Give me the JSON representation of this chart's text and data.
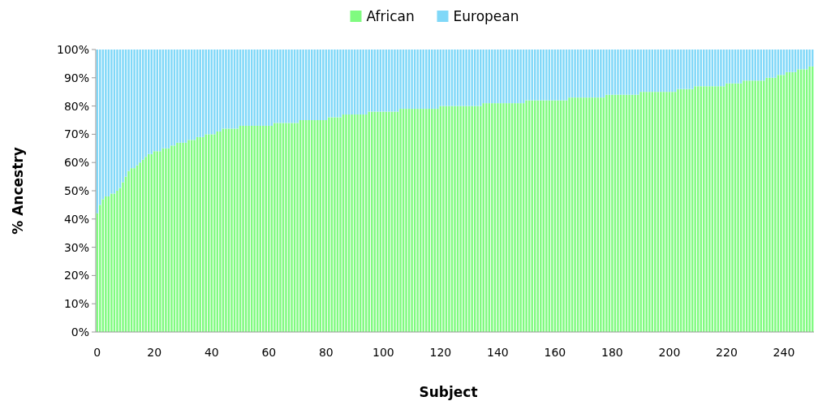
{
  "chart_data": {
    "type": "bar",
    "stacked": true,
    "xlabel": "Subject",
    "ylabel": "% Ancestry",
    "legend": "top",
    "grid": false,
    "ylim": [
      0,
      100
    ],
    "yticks": [
      {
        "value": 0,
        "label": "0%"
      },
      {
        "value": 10,
        "label": "10%"
      },
      {
        "value": 20,
        "label": "20%"
      },
      {
        "value": 30,
        "label": "30%"
      },
      {
        "value": 40,
        "label": "40%"
      },
      {
        "value": 50,
        "label": "50%"
      },
      {
        "value": 60,
        "label": "60%"
      },
      {
        "value": 70,
        "label": "70%"
      },
      {
        "value": 80,
        "label": "80%"
      },
      {
        "value": 90,
        "label": "90%"
      },
      {
        "value": 100,
        "label": "100%"
      }
    ],
    "categories": [
      "0",
      null,
      null,
      null,
      null,
      null,
      null,
      null,
      null,
      null,
      null,
      null,
      null,
      null,
      null,
      null,
      null,
      null,
      null,
      null,
      "20",
      null,
      null,
      null,
      null,
      null,
      null,
      null,
      null,
      null,
      null,
      null,
      null,
      null,
      null,
      null,
      null,
      null,
      null,
      null,
      "40",
      null,
      null,
      null,
      null,
      null,
      null,
      null,
      null,
      null,
      null,
      null,
      null,
      null,
      null,
      null,
      null,
      null,
      null,
      null,
      "60",
      null,
      null,
      null,
      null,
      null,
      null,
      null,
      null,
      null,
      null,
      null,
      null,
      null,
      null,
      null,
      null,
      null,
      null,
      null,
      "80",
      null,
      null,
      null,
      null,
      null,
      null,
      null,
      null,
      null,
      null,
      null,
      null,
      null,
      null,
      null,
      null,
      null,
      null,
      null,
      "100",
      null,
      null,
      null,
      null,
      null,
      null,
      null,
      null,
      null,
      null,
      null,
      null,
      null,
      null,
      null,
      null,
      null,
      null,
      null,
      "120",
      null,
      null,
      null,
      null,
      null,
      null,
      null,
      null,
      null,
      null,
      null,
      null,
      null,
      null,
      null,
      null,
      null,
      null,
      null,
      "140",
      null,
      null,
      null,
      null,
      null,
      null,
      null,
      null,
      null,
      null,
      null,
      null,
      null,
      null,
      null,
      null,
      null,
      null,
      null,
      "160",
      null,
      null,
      null,
      null,
      null,
      null,
      null,
      null,
      null,
      null,
      null,
      null,
      null,
      null,
      null,
      null,
      null,
      null,
      null,
      "180",
      null,
      null,
      null,
      null,
      null,
      null,
      null,
      null,
      null,
      null,
      null,
      null,
      null,
      null,
      null,
      null,
      null,
      null,
      null,
      "200",
      null,
      null,
      null,
      null,
      null,
      null,
      null,
      null,
      null,
      null,
      null,
      null,
      null,
      null,
      null,
      null,
      null,
      null,
      null,
      "220",
      null,
      null,
      null,
      null,
      null,
      null,
      null,
      null,
      null,
      null,
      null,
      null,
      null,
      null,
      null,
      null,
      null,
      null,
      null,
      "240",
      null,
      null,
      null,
      null,
      null,
      null,
      null,
      null,
      null,
      null
    ],
    "series": [
      {
        "name": "African",
        "color": "#80fb80",
        "values": [
          42,
          45,
          47,
          48,
          48,
          49,
          49,
          50,
          51,
          53,
          55,
          57,
          58,
          58,
          59,
          60,
          61,
          62,
          63,
          63,
          64,
          64,
          64,
          65,
          65,
          65,
          66,
          66,
          67,
          67,
          67,
          67,
          68,
          68,
          68,
          69,
          69,
          69,
          70,
          70,
          70,
          70,
          71,
          71,
          72,
          72,
          72,
          72,
          72,
          72,
          73,
          73,
          73,
          73,
          73,
          73,
          73,
          73,
          73,
          73,
          73,
          73,
          74,
          74,
          74,
          74,
          74,
          74,
          74,
          74,
          74,
          75,
          75,
          75,
          75,
          75,
          75,
          75,
          75,
          75,
          75,
          76,
          76,
          76,
          76,
          76,
          77,
          77,
          77,
          77,
          77,
          77,
          77,
          77,
          77,
          78,
          78,
          78,
          78,
          78,
          78,
          78,
          78,
          78,
          78,
          78,
          79,
          79,
          79,
          79,
          79,
          79,
          79,
          79,
          79,
          79,
          79,
          79,
          79,
          79,
          80,
          80,
          80,
          80,
          80,
          80,
          80,
          80,
          80,
          80,
          80,
          80,
          80,
          80,
          80,
          81,
          81,
          81,
          81,
          81,
          81,
          81,
          81,
          81,
          81,
          81,
          81,
          81,
          81,
          81,
          82,
          82,
          82,
          82,
          82,
          82,
          82,
          82,
          82,
          82,
          82,
          82,
          82,
          82,
          82,
          83,
          83,
          83,
          83,
          83,
          83,
          83,
          83,
          83,
          83,
          83,
          83,
          83,
          84,
          84,
          84,
          84,
          84,
          84,
          84,
          84,
          84,
          84,
          84,
          84,
          85,
          85,
          85,
          85,
          85,
          85,
          85,
          85,
          85,
          85,
          85,
          85,
          85,
          86,
          86,
          86,
          86,
          86,
          86,
          87,
          87,
          87,
          87,
          87,
          87,
          87,
          87,
          87,
          87,
          87,
          88,
          88,
          88,
          88,
          88,
          88,
          89,
          89,
          89,
          89,
          89,
          89,
          89,
          89,
          90,
          90,
          90,
          90,
          91,
          91,
          91,
          92,
          92,
          92,
          92,
          93,
          93,
          93,
          93,
          94,
          94
        ]
      },
      {
        "name": "European",
        "color": "#80d8f8",
        "values": [
          58,
          55,
          53,
          52,
          52,
          51,
          51,
          50,
          49,
          47,
          45,
          43,
          42,
          42,
          41,
          40,
          39,
          38,
          37,
          37,
          36,
          36,
          36,
          35,
          35,
          35,
          34,
          34,
          33,
          33,
          33,
          33,
          32,
          32,
          32,
          31,
          31,
          31,
          30,
          30,
          30,
          30,
          29,
          29,
          28,
          28,
          28,
          28,
          28,
          28,
          27,
          27,
          27,
          27,
          27,
          27,
          27,
          27,
          27,
          27,
          27,
          27,
          26,
          26,
          26,
          26,
          26,
          26,
          26,
          26,
          26,
          25,
          25,
          25,
          25,
          25,
          25,
          25,
          25,
          25,
          25,
          24,
          24,
          24,
          24,
          24,
          23,
          23,
          23,
          23,
          23,
          23,
          23,
          23,
          23,
          22,
          22,
          22,
          22,
          22,
          22,
          22,
          22,
          22,
          22,
          22,
          21,
          21,
          21,
          21,
          21,
          21,
          21,
          21,
          21,
          21,
          21,
          21,
          21,
          21,
          20,
          20,
          20,
          20,
          20,
          20,
          20,
          20,
          20,
          20,
          20,
          20,
          20,
          20,
          20,
          19,
          19,
          19,
          19,
          19,
          19,
          19,
          19,
          19,
          19,
          19,
          19,
          19,
          19,
          19,
          18,
          18,
          18,
          18,
          18,
          18,
          18,
          18,
          18,
          18,
          18,
          18,
          18,
          18,
          18,
          17,
          17,
          17,
          17,
          17,
          17,
          17,
          17,
          17,
          17,
          17,
          17,
          17,
          16,
          16,
          16,
          16,
          16,
          16,
          16,
          16,
          16,
          16,
          16,
          16,
          15,
          15,
          15,
          15,
          15,
          15,
          15,
          15,
          15,
          15,
          15,
          15,
          15,
          14,
          14,
          14,
          14,
          14,
          14,
          13,
          13,
          13,
          13,
          13,
          13,
          13,
          13,
          13,
          13,
          13,
          12,
          12,
          12,
          12,
          12,
          12,
          11,
          11,
          11,
          11,
          11,
          11,
          11,
          11,
          10,
          10,
          10,
          10,
          9,
          9,
          9,
          8,
          8,
          8,
          8,
          7,
          7,
          7,
          7,
          6,
          6
        ]
      }
    ]
  }
}
